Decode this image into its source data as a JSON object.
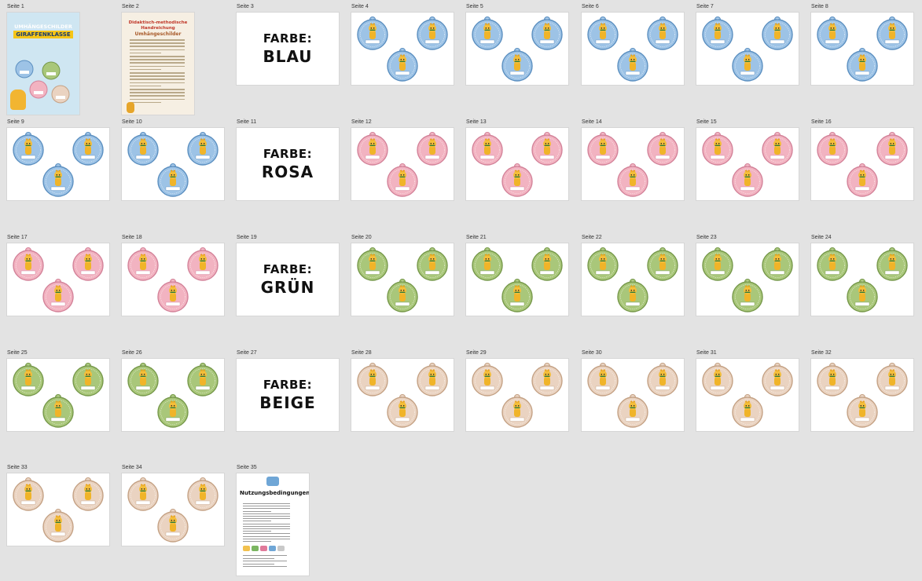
{
  "page_label_prefix": "Seite",
  "colors": {
    "blau": {
      "fill": "#9dc3e6",
      "ring": "#5b8fc0"
    },
    "rosa": {
      "fill": "#f2b3c1",
      "ring": "#d38299"
    },
    "gruen": {
      "fill": "#a9c77a",
      "ring": "#76984a"
    },
    "beige": {
      "fill": "#ead3c1",
      "ring": "#c4a184"
    }
  },
  "pages": [
    {
      "label": "Seite 1",
      "kind": "cover",
      "title_line1": "UMHÄNGESCHILDER",
      "title_line2": "GIRAFFENKLASSE"
    },
    {
      "label": "Seite 2",
      "kind": "doc",
      "heading": "Didaktisch-methodische Handreichung",
      "subheading": "Umhängeschilder"
    },
    {
      "label": "Seite 3",
      "kind": "farbe",
      "word": "FARBE:",
      "color_name": "BLAU"
    },
    {
      "label": "Seite 4",
      "kind": "tags",
      "color": "blau"
    },
    {
      "label": "Seite 5",
      "kind": "tags",
      "color": "blau"
    },
    {
      "label": "Seite 6",
      "kind": "tags",
      "color": "blau"
    },
    {
      "label": "Seite 7",
      "kind": "tags",
      "color": "blau"
    },
    {
      "label": "Seite 8",
      "kind": "tags",
      "color": "blau"
    },
    {
      "label": "Seite 9",
      "kind": "tags",
      "color": "blau"
    },
    {
      "label": "Seite 10",
      "kind": "tags",
      "color": "blau"
    },
    {
      "label": "Seite 11",
      "kind": "farbe",
      "word": "FARBE:",
      "color_name": "ROSA"
    },
    {
      "label": "Seite 12",
      "kind": "tags",
      "color": "rosa"
    },
    {
      "label": "Seite 13",
      "kind": "tags",
      "color": "rosa"
    },
    {
      "label": "Seite 14",
      "kind": "tags",
      "color": "rosa"
    },
    {
      "label": "Seite 15",
      "kind": "tags",
      "color": "rosa"
    },
    {
      "label": "Seite 16",
      "kind": "tags",
      "color": "rosa"
    },
    {
      "label": "Seite 17",
      "kind": "tags",
      "color": "rosa"
    },
    {
      "label": "Seite 18",
      "kind": "tags",
      "color": "rosa"
    },
    {
      "label": "Seite 19",
      "kind": "farbe",
      "word": "FARBE:",
      "color_name": "GRÜN"
    },
    {
      "label": "Seite 20",
      "kind": "tags",
      "color": "gruen"
    },
    {
      "label": "Seite 21",
      "kind": "tags",
      "color": "gruen"
    },
    {
      "label": "Seite 22",
      "kind": "tags",
      "color": "gruen"
    },
    {
      "label": "Seite 23",
      "kind": "tags",
      "color": "gruen"
    },
    {
      "label": "Seite 24",
      "kind": "tags",
      "color": "gruen"
    },
    {
      "label": "Seite 25",
      "kind": "tags",
      "color": "gruen"
    },
    {
      "label": "Seite 26",
      "kind": "tags",
      "color": "gruen"
    },
    {
      "label": "Seite 27",
      "kind": "farbe",
      "word": "FARBE:",
      "color_name": "BEIGE"
    },
    {
      "label": "Seite 28",
      "kind": "tags",
      "color": "beige"
    },
    {
      "label": "Seite 29",
      "kind": "tags",
      "color": "beige"
    },
    {
      "label": "Seite 30",
      "kind": "tags",
      "color": "beige"
    },
    {
      "label": "Seite 31",
      "kind": "tags",
      "color": "beige"
    },
    {
      "label": "Seite 32",
      "kind": "tags",
      "color": "beige"
    },
    {
      "label": "Seite 33",
      "kind": "tags",
      "color": "beige"
    },
    {
      "label": "Seite 34",
      "kind": "tags",
      "color": "beige"
    },
    {
      "label": "Seite 35",
      "kind": "notice",
      "heading": "Nutzungsbedingungen"
    }
  ]
}
